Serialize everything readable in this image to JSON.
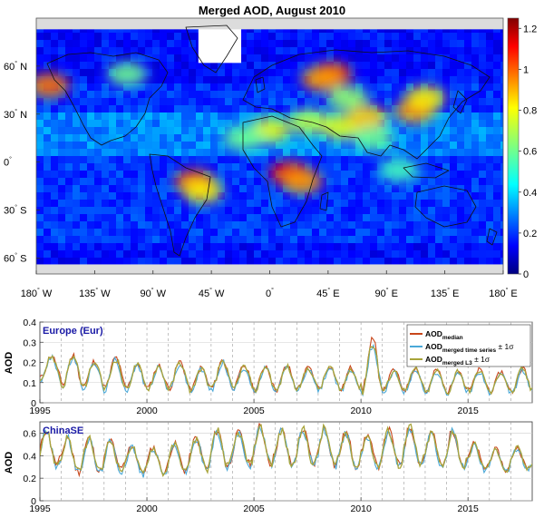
{
  "chart_data": [
    {
      "type": "heatmap",
      "title": "Merged AOD, August  2010",
      "x_ticks": [
        {
          "value": -180,
          "deg": "180",
          "hem": " W"
        },
        {
          "value": -135,
          "deg": "135",
          "hem": " W"
        },
        {
          "value": -90,
          "deg": "90",
          "hem": " W"
        },
        {
          "value": -45,
          "deg": "45",
          "hem": " W"
        },
        {
          "value": 0,
          "deg": "0",
          "hem": ""
        },
        {
          "value": 45,
          "deg": "45",
          "hem": " E"
        },
        {
          "value": 90,
          "deg": "90",
          "hem": " E"
        },
        {
          "value": 135,
          "deg": "135",
          "hem": " E"
        },
        {
          "value": 180,
          "deg": "180",
          "hem": " E"
        }
      ],
      "y_ticks": [
        {
          "value": 60,
          "deg": "60",
          "hem": " N"
        },
        {
          "value": 30,
          "deg": "30",
          "hem": " N"
        },
        {
          "value": 0,
          "deg": "0",
          "hem": ""
        },
        {
          "value": -30,
          "deg": "30",
          "hem": " S"
        },
        {
          "value": -60,
          "deg": "60",
          "hem": " S"
        }
      ],
      "xlim": [
        -180,
        180
      ],
      "ylim": [
        -70,
        90
      ],
      "colorbar": {
        "range": [
          0,
          1.25
        ],
        "ticks": [
          {
            "value": 0,
            "label": "0"
          },
          {
            "value": 0.2,
            "label": "0.2"
          },
          {
            "value": 0.4,
            "label": "0.4"
          },
          {
            "value": 0.6,
            "label": "0.6"
          },
          {
            "value": 0.8,
            "label": "0.8"
          },
          {
            "value": 1,
            "label": "1"
          },
          {
            "value": 1.2,
            "label": "1.2"
          }
        ]
      },
      "background_aod": 0.22,
      "hotspots": [
        {
          "lon": 48,
          "lat": 55,
          "aod": 1.0
        },
        {
          "lon": 40,
          "lat": 52,
          "aod": 0.9
        },
        {
          "lon": 15,
          "lat": -7,
          "aod": 1.1
        },
        {
          "lon": 25,
          "lat": -12,
          "aod": 0.9
        },
        {
          "lon": -58,
          "lat": -12,
          "aod": 1.0
        },
        {
          "lon": -52,
          "lat": -18,
          "aod": 0.8
        },
        {
          "lon": 0,
          "lat": 20,
          "aod": 0.75
        },
        {
          "lon": 30,
          "lat": 25,
          "aod": 0.7
        },
        {
          "lon": 55,
          "lat": 22,
          "aod": 0.75
        },
        {
          "lon": 75,
          "lat": 28,
          "aod": 0.85
        },
        {
          "lon": 112,
          "lat": 32,
          "aod": 0.9
        },
        {
          "lon": 120,
          "lat": 40,
          "aod": 0.8
        },
        {
          "lon": -170,
          "lat": 48,
          "aod": 0.95
        },
        {
          "lon": -110,
          "lat": 55,
          "aod": 0.6
        },
        {
          "lon": -20,
          "lat": 15,
          "aod": 0.6
        },
        {
          "lon": 100,
          "lat": -5,
          "aod": 0.55
        },
        {
          "lon": 60,
          "lat": 40,
          "aod": 0.65
        },
        {
          "lon": 80,
          "lat": 15,
          "aod": 0.6
        }
      ],
      "missing_regions": [
        {
          "name": "greenland",
          "lon": [
            -55,
            -22
          ],
          "lat": [
            62,
            84
          ]
        },
        {
          "name": "arctic-north",
          "lon": [
            -180,
            180
          ],
          "lat": [
            83,
            90
          ]
        },
        {
          "name": "southern-ocean",
          "lon": [
            -180,
            180
          ],
          "lat": [
            -70,
            -64
          ]
        }
      ]
    },
    {
      "type": "line",
      "title": "Europe (Eur)",
      "ylabel": "AOD",
      "xlim": [
        1995,
        2018
      ],
      "ylim": [
        0,
        0.4
      ],
      "x_ticks": [
        {
          "value": 1995,
          "label": "1995"
        },
        {
          "value": 2000,
          "label": "2000"
        },
        {
          "value": 2005,
          "label": "2005"
        },
        {
          "value": 2010,
          "label": "2010"
        },
        {
          "value": 2015,
          "label": "2015"
        }
      ],
      "y_ticks": [
        {
          "value": 0,
          "label": "0"
        },
        {
          "value": 0.1,
          "label": "0.1"
        },
        {
          "value": 0.2,
          "label": "0.2"
        },
        {
          "value": 0.3,
          "label": "0.3"
        },
        {
          "value": 0.4,
          "label": "0.4"
        }
      ],
      "legend": {
        "placement": "top-right",
        "entries": [
          {
            "main": "AOD",
            "sub": "median",
            "suffix": ""
          },
          {
            "main": "AOD",
            "sub": "merged time series",
            "suffix": " ± 1σ"
          },
          {
            "main": "AOD",
            "sub": "merged L3",
            "suffix": " ± 1σ"
          }
        ]
      },
      "seasonal": {
        "base": 0.12,
        "amplitude": 0.07,
        "peak_month": 6.5
      },
      "year_peaks": [
        0.23,
        0.23,
        0.2,
        0.22,
        0.19,
        0.18,
        0.2,
        0.17,
        0.21,
        0.18,
        0.18,
        0.18,
        0.17,
        0.18,
        0.17,
        0.3,
        0.16,
        0.17,
        0.16,
        0.16,
        0.16,
        0.15,
        0.17,
        0.16
      ],
      "year_troughs": [
        0.12,
        0.08,
        0.08,
        0.07,
        0.07,
        0.07,
        0.07,
        0.06,
        0.07,
        0.07,
        0.06,
        0.06,
        0.07,
        0.07,
        0.06,
        0.06,
        0.06,
        0.06,
        0.05,
        0.05,
        0.06,
        0.05,
        0.05,
        0.07
      ],
      "series": [
        {
          "name": "median",
          "color": "#c8461a",
          "offset": 0.004
        },
        {
          "name": "merged time series",
          "color": "#4aa8d8",
          "offset": -0.006
        },
        {
          "name": "merged L3",
          "color": "#a8a43a",
          "offset": 0
        }
      ],
      "dashed_lines_at_years": true
    },
    {
      "type": "line",
      "title": "ChinaSE",
      "ylabel": "AOD",
      "xlim": [
        1995,
        2018
      ],
      "ylim": [
        0,
        0.7
      ],
      "x_ticks": [
        {
          "value": 1995,
          "label": "1995"
        },
        {
          "value": 2000,
          "label": "2000"
        },
        {
          "value": 2005,
          "label": "2005"
        },
        {
          "value": 2010,
          "label": "2010"
        },
        {
          "value": 2015,
          "label": "2015"
        }
      ],
      "y_ticks": [
        {
          "value": 0,
          "label": "0"
        },
        {
          "value": 0.2,
          "label": "0.2"
        },
        {
          "value": 0.4,
          "label": "0.4"
        },
        {
          "value": 0.6,
          "label": "0.6"
        }
      ],
      "seasonal": {
        "base": 0.4,
        "amplitude": 0.12,
        "peak_month": 3.5
      },
      "year_peaks": [
        0.62,
        0.56,
        0.55,
        0.53,
        0.49,
        0.47,
        0.5,
        0.55,
        0.62,
        0.6,
        0.65,
        0.62,
        0.63,
        0.64,
        0.6,
        0.58,
        0.62,
        0.65,
        0.6,
        0.62,
        0.5,
        0.45,
        0.47,
        0.38
      ],
      "year_troughs": [
        0.32,
        0.25,
        0.25,
        0.27,
        0.24,
        0.24,
        0.26,
        0.28,
        0.3,
        0.32,
        0.33,
        0.31,
        0.32,
        0.31,
        0.3,
        0.3,
        0.31,
        0.32,
        0.3,
        0.3,
        0.28,
        0.26,
        0.28,
        0.29
      ],
      "series": [
        {
          "name": "median",
          "color": "#c8461a",
          "offset": 0.005
        },
        {
          "name": "merged time series",
          "color": "#4aa8d8",
          "offset": -0.008
        },
        {
          "name": "merged L3",
          "color": "#a8a43a",
          "offset": 0
        }
      ],
      "dashed_lines_at_years": true
    }
  ]
}
